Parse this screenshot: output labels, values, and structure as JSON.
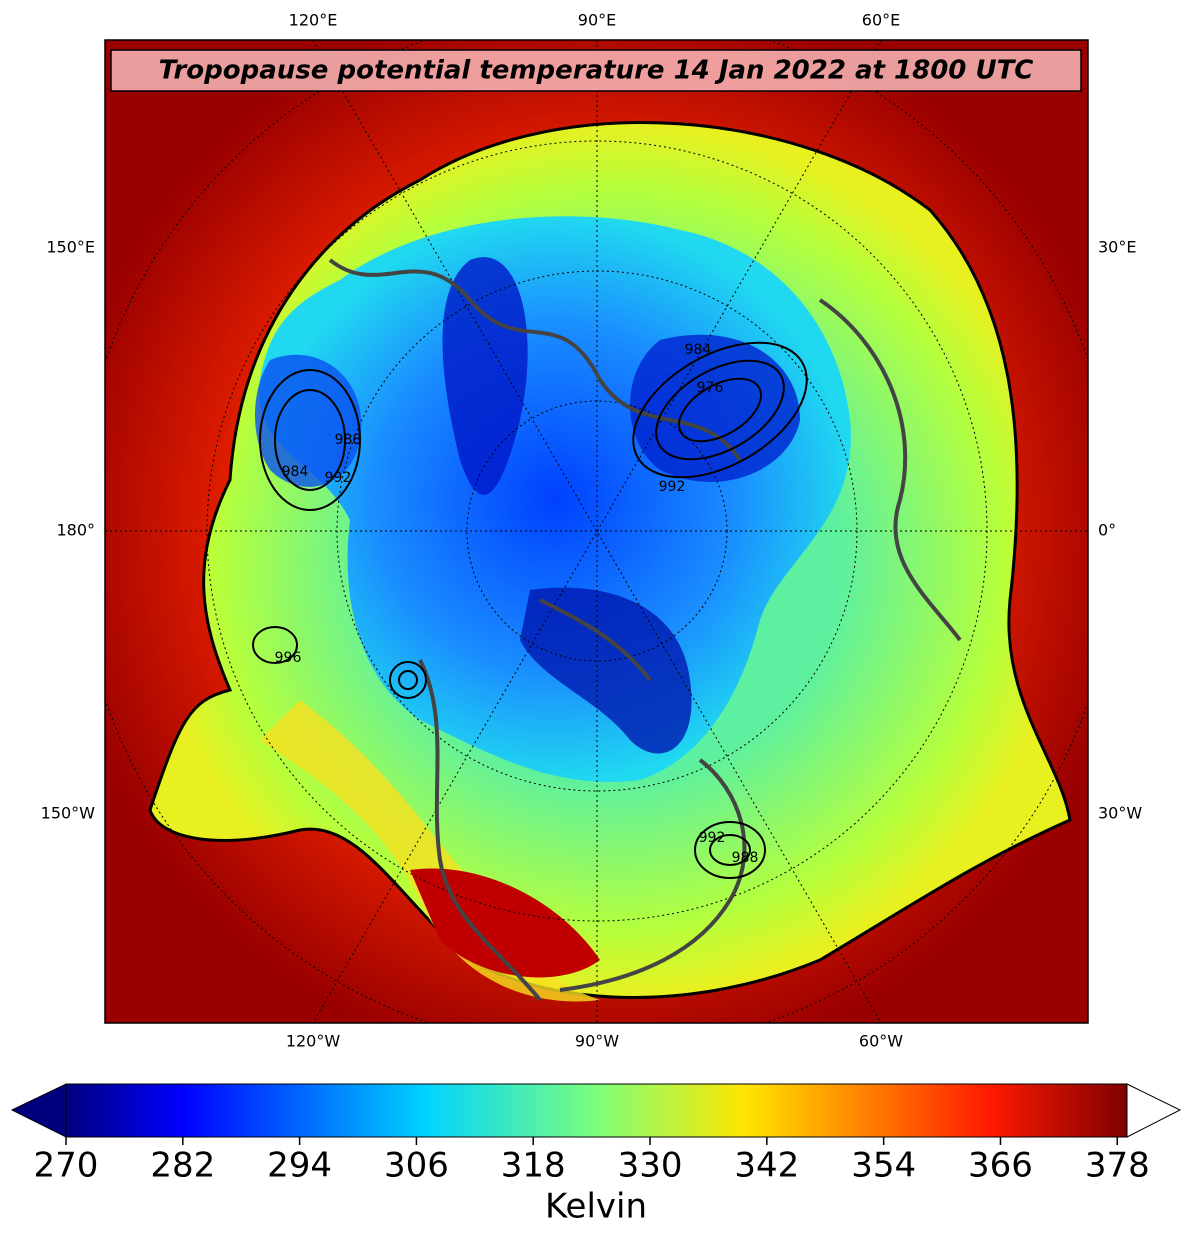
{
  "title": "Tropopause potential temperature 14 Jan 2022 at 1800 UTC",
  "map": {
    "top_labels": [
      "120°E",
      "90°E",
      "60°E"
    ],
    "bottom_labels": [
      "120°W",
      "90°W",
      "60°W"
    ],
    "left_labels": [
      "150°E",
      "180°",
      "150°W"
    ],
    "right_labels": [
      "30°E",
      "0°",
      "30°W"
    ],
    "contour_labels": [
      "988",
      "984",
      "992",
      "996",
      "984",
      "976",
      "992",
      "992",
      "988"
    ]
  },
  "colorbar": {
    "range": [
      270,
      379
    ],
    "ticks": [
      270,
      282,
      294,
      306,
      318,
      330,
      342,
      354,
      366,
      378
    ],
    "label": "Kelvin"
  }
}
